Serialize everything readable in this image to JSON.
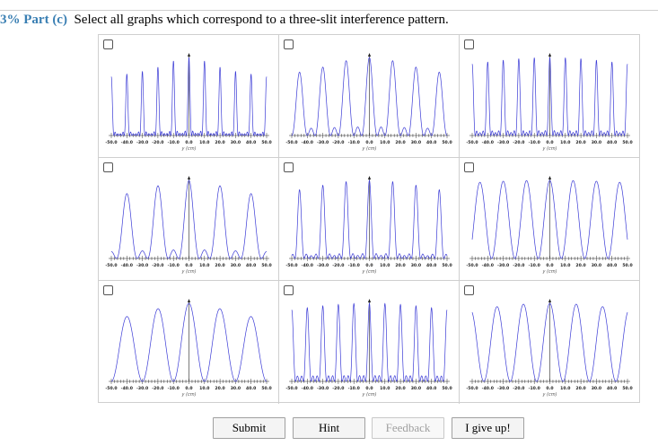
{
  "question": {
    "percent": "3%",
    "part_label": "Part (c)",
    "text": "Select all graphs which correspond to a three-slit interference pattern."
  },
  "graphs": {
    "x_axis_title": "y (cm)",
    "x_ticks": [
      "-50.0",
      "-40.0",
      "-30.0",
      "-20.0",
      "-10.0",
      "0.0",
      "10.0",
      "20.0",
      "30.0",
      "40.0",
      "50.0"
    ],
    "curve_color": "#3b3bd6",
    "items": [
      {
        "slits": 6,
        "period": 10,
        "decay": 0.08
      },
      {
        "slits": 3,
        "period": 15,
        "decay": 0.05
      },
      {
        "slits": 5,
        "period": 10,
        "decay": 0.02
      },
      {
        "slits": 3,
        "period": 20,
        "decay": 0.05
      },
      {
        "slits": 5,
        "period": 15,
        "decay": 0.03
      },
      {
        "slits": 2,
        "period": 15,
        "decay": 0.01
      },
      {
        "slits": 2,
        "period": 20,
        "decay": 0.05
      },
      {
        "slits": 4,
        "period": 10,
        "decay": 0.02
      },
      {
        "slits": 2,
        "period": 17,
        "decay": 0.02
      }
    ]
  },
  "buttons": {
    "submit": "Submit",
    "hint": "Hint",
    "feedback": "Feedback",
    "give_up": "I give up!"
  }
}
